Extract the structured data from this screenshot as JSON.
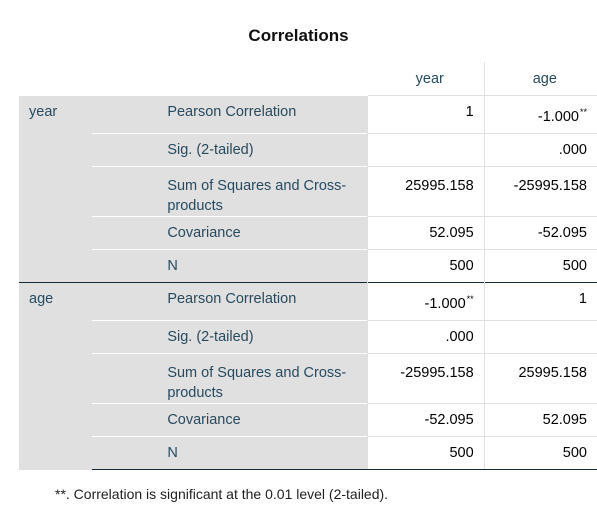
{
  "title": "Correlations",
  "columns": [
    "year",
    "age"
  ],
  "groups": [
    {
      "name": "year",
      "rows": [
        {
          "label": "Pearson Correlation",
          "year": "1",
          "age": "-1.000",
          "age_sup": "**"
        },
        {
          "label": "Sig. (2-tailed)",
          "year": "",
          "age": ".000"
        },
        {
          "label": "Sum of Squares and Cross-products",
          "year": "25995.158",
          "age": "-25995.158"
        },
        {
          "label": "Covariance",
          "year": "52.095",
          "age": "-52.095"
        },
        {
          "label": "N",
          "year": "500",
          "age": "500"
        }
      ]
    },
    {
      "name": "age",
      "rows": [
        {
          "label": "Pearson Correlation",
          "year": "-1.000",
          "year_sup": "**",
          "age": "1"
        },
        {
          "label": "Sig. (2-tailed)",
          "year": ".000",
          "age": ""
        },
        {
          "label": "Sum of Squares and Cross-products",
          "year": "-25995.158",
          "age": "25995.158"
        },
        {
          "label": "Covariance",
          "year": "-52.095",
          "age": "52.095"
        },
        {
          "label": "N",
          "year": "500",
          "age": "500"
        }
      ]
    }
  ],
  "footnote": "**. Correlation is significant at the 0.01 level (2-tailed)."
}
